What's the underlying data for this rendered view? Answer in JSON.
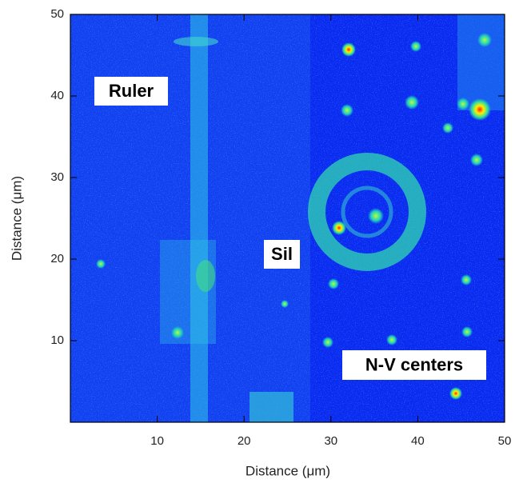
{
  "chart_data": {
    "type": "image",
    "xlabel": "Distance (μm)",
    "ylabel": "Distance (μm)",
    "xlim": [
      0,
      50
    ],
    "ylim": [
      0,
      50
    ],
    "xticks": [
      10,
      20,
      30,
      40,
      50
    ],
    "yticks": [
      10,
      20,
      30,
      40,
      50
    ],
    "annotations": [
      "Ruler",
      "Sil",
      "N-V centers"
    ]
  }
}
